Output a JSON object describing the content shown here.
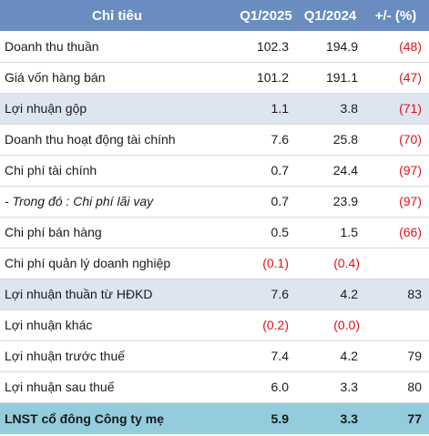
{
  "table": {
    "headers": {
      "label": "Chỉ tiêu",
      "q1_2025": "Q1/2025",
      "q1_2024": "Q1/2024",
      "change": "+/- (%)"
    },
    "rows": [
      {
        "label": "Doanh thu thuần",
        "q1_2025": "102.3",
        "q1_2024": "194.9",
        "change": "(48)"
      },
      {
        "label": "Giá vốn hàng bán",
        "q1_2025": "101.2",
        "q1_2024": "191.1",
        "change": "(47)"
      },
      {
        "label": "Lợi nhuận gộp",
        "q1_2025": "1.1",
        "q1_2024": "3.8",
        "change": "(71)"
      },
      {
        "label": "Doanh thu hoạt động tài chính",
        "q1_2025": "7.6",
        "q1_2024": "25.8",
        "change": "(70)"
      },
      {
        "label": "Chi phí tài chính",
        "q1_2025": "0.7",
        "q1_2024": "24.4",
        "change": "(97)"
      },
      {
        "label": "- Trong đó : Chi phí lãi vay",
        "q1_2025": "0.7",
        "q1_2024": "23.9",
        "change": "(97)"
      },
      {
        "label": "Chi phí bán hàng",
        "q1_2025": "0.5",
        "q1_2024": "1.5",
        "change": "(66)"
      },
      {
        "label": "Chi phí quản lý doanh nghiệp",
        "q1_2025": "(0.1)",
        "q1_2024": "(0.4)",
        "change": ""
      },
      {
        "label": "Lợi nhuận thuần từ HĐKD",
        "q1_2025": "7.6",
        "q1_2024": "4.2",
        "change": "83"
      },
      {
        "label": "Lợi nhuận khác",
        "q1_2025": "(0.2)",
        "q1_2024": "(0.0)",
        "change": ""
      },
      {
        "label": "Lợi nhuận trước thuế",
        "q1_2025": "7.4",
        "q1_2024": "4.2",
        "change": "79"
      },
      {
        "label": "Lợi nhuận sau thuế",
        "q1_2025": "6.0",
        "q1_2024": "3.3",
        "change": "80"
      },
      {
        "label": "LNST cổ đông Công ty mẹ",
        "q1_2025": "5.9",
        "q1_2024": "3.3",
        "change": "77"
      }
    ]
  },
  "colors": {
    "header_bg": "#6b8cc0",
    "highlight_row_bg": "#dde5f0",
    "total_row_bg": "#93cddd",
    "negative_text": "#e0121a"
  }
}
